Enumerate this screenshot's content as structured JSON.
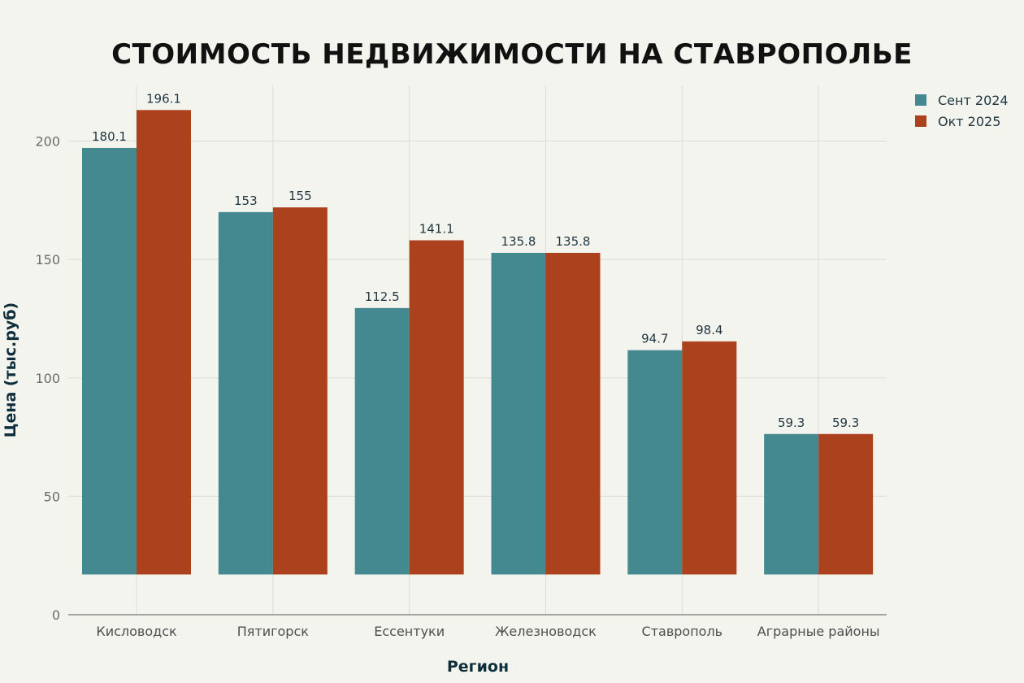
{
  "chart_data": {
    "type": "bar",
    "title": "СТОИМОСТЬ НЕДВИЖИМОСТИ НА СТАВРОПОЛЬЕ",
    "xlabel": "Регион",
    "ylabel": "Цена (тыс.руб)",
    "categories": [
      "Кисловодск",
      "Пятигорск",
      "Ессентуки",
      "Железноводск",
      "Ставрополь",
      "Аграрные районы"
    ],
    "series": [
      {
        "name": "Сент 2024",
        "color": "#448890",
        "values": [
          180.1,
          153,
          112.5,
          135.8,
          94.7,
          59.3
        ]
      },
      {
        "name": "Окт 2025",
        "color": "#ab411d",
        "values": [
          196.1,
          155,
          141.1,
          135.8,
          98.4,
          59.3
        ]
      }
    ],
    "data_labels": [
      [
        "180.1",
        "153",
        "112.5",
        "135.8",
        "94.7",
        "59.3"
      ],
      [
        "196.1",
        "155",
        "141.1",
        "135.8",
        "98.4",
        "59.3"
      ]
    ],
    "yticks": [
      0,
      50,
      100,
      150,
      200
    ],
    "ylim": [
      0,
      220
    ],
    "bar_base": 17,
    "grid": true,
    "legend_position": "top-right"
  }
}
